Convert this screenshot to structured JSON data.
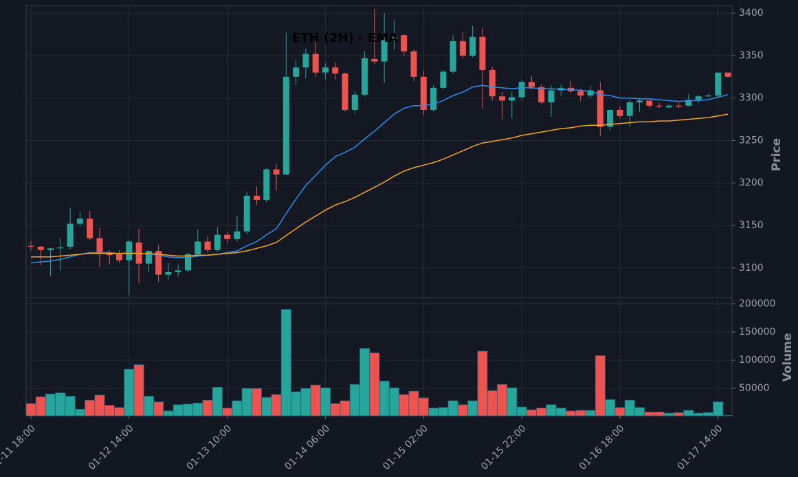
{
  "chart_data": [
    {
      "type": "candlestick",
      "title": "ETH (2H) - EMA",
      "ylabel": "Price",
      "x": [
        "01-11 18:00",
        null,
        null,
        null,
        null,
        null,
        null,
        null,
        null,
        null,
        "01-12 14:00",
        null,
        null,
        null,
        null,
        null,
        null,
        null,
        null,
        null,
        "01-13 10:00",
        null,
        null,
        null,
        null,
        null,
        null,
        null,
        null,
        null,
        "01-14 06:00",
        null,
        null,
        null,
        null,
        null,
        null,
        null,
        null,
        null,
        "01-15 02:00",
        null,
        null,
        null,
        null,
        null,
        null,
        null,
        null,
        null,
        "01-15 22:00",
        null,
        null,
        null,
        null,
        null,
        null,
        null,
        null,
        null,
        "01-16 18:00",
        null,
        null,
        null,
        null,
        null,
        null,
        null,
        null,
        null,
        "01-17 14:00",
        null
      ],
      "open": [
        3126,
        3125,
        3121,
        3123,
        3125,
        3152,
        3158,
        3135,
        3117,
        3116,
        3109,
        3130,
        3105,
        3120,
        3092,
        3095,
        3097,
        3116,
        3131,
        3121,
        3139,
        3134,
        3143,
        3185,
        3180,
        3216,
        3210,
        3325,
        3336,
        3352,
        3330,
        3336,
        3329,
        3286,
        3304,
        3346,
        3343,
        3368,
        3374,
        3355,
        3325,
        3286,
        3312,
        3331,
        3367,
        3350,
        3372,
        3333,
        3302,
        3297,
        3301,
        3319,
        3313,
        3295,
        3309,
        3312,
        3308,
        3303,
        3309,
        3266,
        3286,
        3279,
        3295,
        3297,
        3291,
        3289,
        3291,
        3291,
        3298,
        3302,
        3303,
        3330
      ],
      "high": [
        3132,
        3126,
        3124,
        3135,
        3171,
        3166,
        3167,
        3147,
        3121,
        3121,
        3133,
        3146,
        3121,
        3127,
        3106,
        3104,
        3118,
        3145,
        3137,
        3148,
        3142,
        3161,
        3189,
        3196,
        3218,
        3222,
        3377,
        3345,
        3358,
        3366,
        3341,
        3342,
        3330,
        3308,
        3355,
        3405,
        3400,
        3392,
        3375,
        3357,
        3332,
        3315,
        3333,
        3374,
        3378,
        3385,
        3383,
        3337,
        3307,
        3307,
        3322,
        3326,
        3316,
        3315,
        3316,
        3320,
        3311,
        3314,
        3319,
        3287,
        3290,
        3298,
        3300,
        3298,
        3294,
        3293,
        3294,
        3305,
        3304,
        3305,
        3330,
        3330
      ],
      "low": [
        3120,
        3103,
        3090,
        3097,
        3122,
        3149,
        3133,
        3101,
        3104,
        3106,
        3068,
        3082,
        3095,
        3083,
        3086,
        3090,
        3095,
        3113,
        3118,
        3119,
        3129,
        3131,
        3140,
        3174,
        3177,
        3191,
        3209,
        3315,
        3323,
        3325,
        3322,
        3322,
        3284,
        3282,
        3302,
        3340,
        3318,
        3357,
        3350,
        3320,
        3280,
        3284,
        3310,
        3329,
        3347,
        3348,
        3287,
        3297,
        3275,
        3276,
        3298,
        3310,
        3292,
        3278,
        3302,
        3306,
        3296,
        3300,
        3255,
        3262,
        3276,
        3267,
        3284,
        3288,
        3288,
        3288,
        3288,
        3290,
        3294,
        3301,
        3301,
        3324
      ],
      "close": [
        3125,
        3121,
        3123,
        3124,
        3152,
        3158,
        3135,
        3117,
        3115,
        3109,
        3131,
        3105,
        3120,
        3092,
        3095,
        3097,
        3116,
        3131,
        3121,
        3139,
        3134,
        3143,
        3185,
        3180,
        3216,
        3210,
        3325,
        3336,
        3352,
        3330,
        3336,
        3329,
        3286,
        3304,
        3347,
        3343,
        3368,
        3372,
        3355,
        3325,
        3286,
        3312,
        3331,
        3367,
        3350,
        3372,
        3333,
        3302,
        3297,
        3301,
        3319,
        3313,
        3295,
        3309,
        3312,
        3308,
        3303,
        3309,
        3266,
        3286,
        3279,
        3295,
        3297,
        3291,
        3290,
        3291,
        3290,
        3298,
        3302,
        3303,
        3330,
        3325
      ],
      "up_color": "#26a69a",
      "down_color": "#ef5350",
      "lines": [
        {
          "color": "#2f8ee8",
          "values": [
            3106,
            3107,
            3108,
            3110,
            3113,
            3116,
            3118,
            3118,
            3118,
            3117,
            3118,
            3117,
            3117,
            3115,
            3113,
            3112,
            3112,
            3114,
            3115,
            3116,
            3118,
            3120,
            3126,
            3131,
            3139,
            3146,
            3164,
            3181,
            3197,
            3209,
            3221,
            3231,
            3236,
            3242,
            3252,
            3261,
            3271,
            3281,
            3288,
            3291,
            3291,
            3293,
            3297,
            3303,
            3307,
            3313,
            3315,
            3313,
            3312,
            3311,
            3312,
            3312,
            3311,
            3311,
            3310,
            3310,
            3309,
            3308,
            3304,
            3303,
            3300,
            3300,
            3299,
            3299,
            3298,
            3297,
            3296,
            3297,
            3297,
            3298,
            3301,
            3304
          ]
        },
        {
          "color": "#f5a623",
          "values": [
            3113,
            3113,
            3113,
            3114,
            3115,
            3116,
            3117,
            3117,
            3117,
            3117,
            3117,
            3117,
            3117,
            3116,
            3115,
            3114,
            3114,
            3115,
            3115,
            3116,
            3117,
            3118,
            3120,
            3123,
            3126,
            3130,
            3138,
            3146,
            3154,
            3161,
            3168,
            3174,
            3178,
            3183,
            3189,
            3195,
            3201,
            3208,
            3214,
            3218,
            3221,
            3224,
            3228,
            3233,
            3238,
            3243,
            3247,
            3249,
            3251,
            3253,
            3256,
            3258,
            3260,
            3262,
            3264,
            3265,
            3267,
            3268,
            3268,
            3269,
            3270,
            3271,
            3272,
            3272,
            3273,
            3273,
            3274,
            3275,
            3276,
            3277,
            3279,
            3281
          ]
        }
      ],
      "ylim": [
        3065,
        3409
      ],
      "yticks": [
        3100,
        3150,
        3200,
        3250,
        3300,
        3350,
        3400
      ],
      "grid": true
    },
    {
      "type": "bar",
      "ylabel": "Volume",
      "values": [
        23000,
        35000,
        40000,
        42000,
        36000,
        13000,
        29000,
        38000,
        20000,
        16000,
        84000,
        92000,
        36000,
        26000,
        10000,
        21000,
        22000,
        24000,
        29000,
        52000,
        15000,
        28000,
        50000,
        50000,
        34000,
        39000,
        190000,
        44000,
        50000,
        56000,
        51000,
        23000,
        28000,
        57000,
        121000,
        113000,
        63000,
        51000,
        39000,
        45000,
        33000,
        15000,
        16000,
        28000,
        21000,
        28000,
        116000,
        46000,
        57000,
        51000,
        17000,
        12000,
        15000,
        21000,
        15000,
        10000,
        11000,
        11000,
        108000,
        30000,
        16000,
        29000,
        16000,
        8000,
        8000,
        6000,
        7000,
        11000,
        6000,
        7000,
        26000,
        2000
      ],
      "ylim": [
        1200,
        211000
      ],
      "yticks": [
        50000,
        100000,
        150000,
        200000
      ],
      "grid": true
    }
  ]
}
